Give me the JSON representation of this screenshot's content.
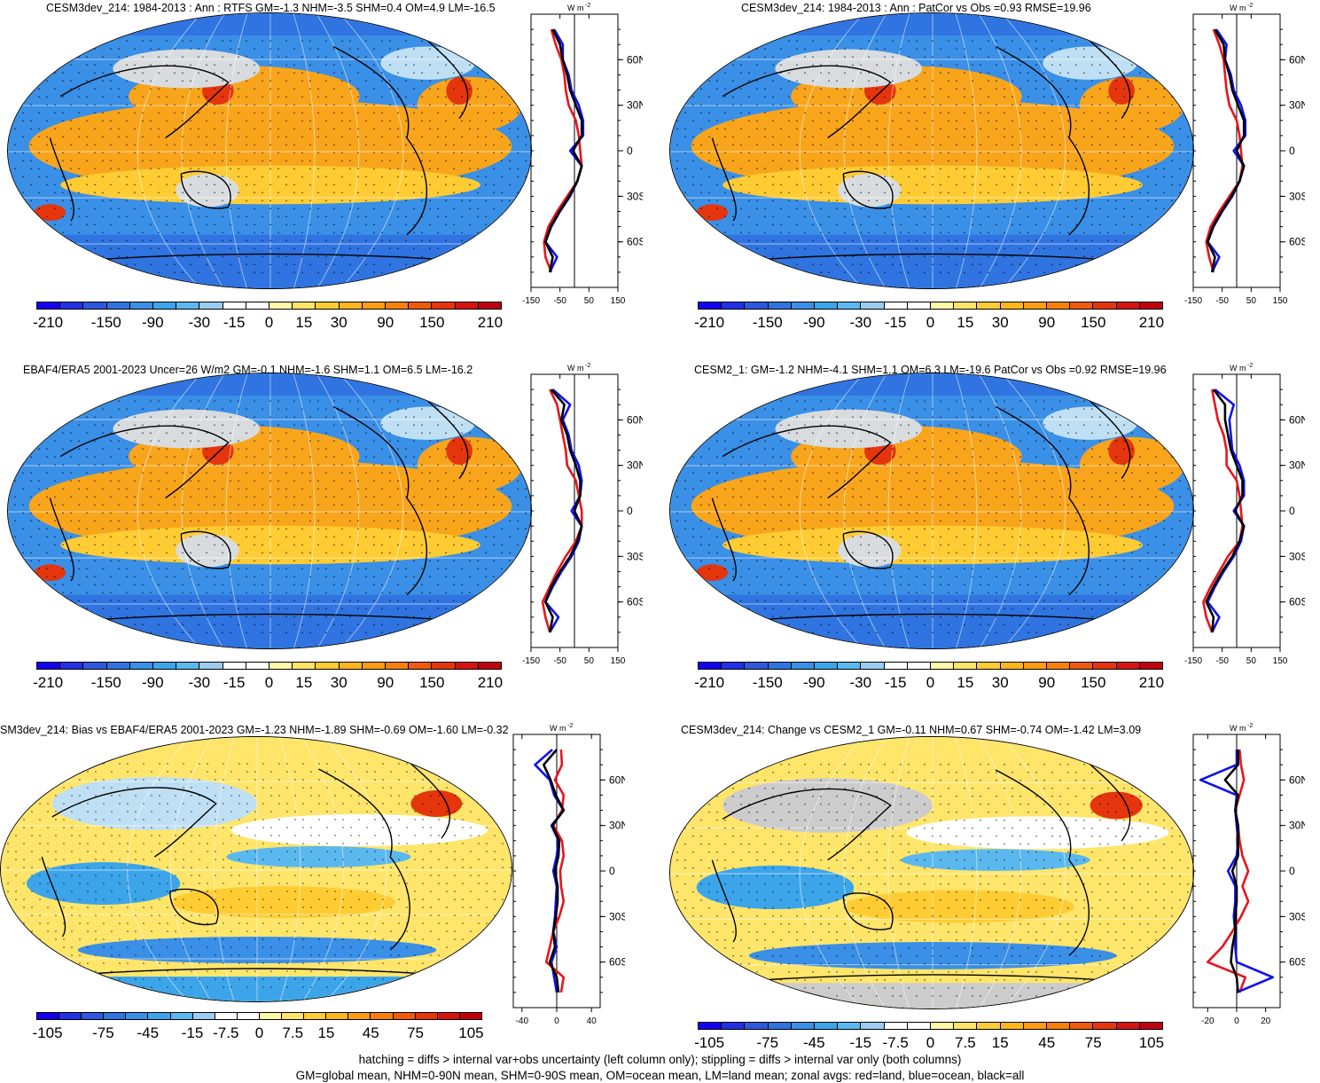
{
  "palettes": {
    "full": [
      "#1500f0",
      "#2230e6",
      "#2e58dd",
      "#2f74e0",
      "#3a8fe6",
      "#3ca5ea",
      "#5ab8ef",
      "#9acdf0",
      "#ffffff",
      "#ffffff",
      "#fff8a8",
      "#ffe56a",
      "#ffcc33",
      "#ffb61d",
      "#ff9c11",
      "#f7800b",
      "#ef5a0b",
      "#e5350d",
      "#d51310",
      "#c00010"
    ],
    "map_ocean": "#3a8fe6",
    "map_warm": "#f9a51c",
    "map_hot": "#e5350d",
    "map_land_grey": "#cccccc"
  },
  "footer": {
    "line1": "hatching = diffs > internal var+obs uncertainty (left column only); stippling = diffs > internal var only (both columns)",
    "line2": "GM=global mean, NHM=0-90N mean, SHM=0-90S mean, OM=ocean mean, LM=land mean; zonal avgs: red=land, blue=ocean, black=all"
  },
  "panels": [
    {
      "title": "CESM3dev_214: 1984-2013 : Ann : RTFS GM=-1.3 NHM=-3.5 SHM=0.4 OM=4.9 LM=-16.5",
      "cbar_labels": [
        "-210",
        "-150",
        "-90",
        "-30",
        "-15",
        "0",
        "15",
        "30",
        "90",
        "150",
        "210"
      ],
      "zonal_unit": "W m",
      "zonal_unit_sup": "-2",
      "zonal_xticks": [
        "-150",
        "-50",
        "50",
        "150"
      ],
      "zonal_yticks": [
        "60N",
        "30N",
        "0",
        "30S",
        "60S"
      ]
    },
    {
      "title": "CESM3dev_214: 1984-2013 : Ann : PatCor vs Obs =0.93 RMSE=19.96",
      "cbar_labels": [
        "-210",
        "-150",
        "-90",
        "-30",
        "-15",
        "0",
        "15",
        "30",
        "90",
        "150",
        "210"
      ],
      "zonal_unit": "W m",
      "zonal_unit_sup": "-2",
      "zonal_xticks": [
        "-150",
        "-50",
        "50",
        "150"
      ],
      "zonal_yticks": [
        "60N",
        "30N",
        "0",
        "30S",
        "60S"
      ]
    },
    {
      "title": "EBAF4/ERA5 2001-2023 Uncer=26 W/m2 GM=-0.1 NHM=-1.6 SHM=1.1 OM=6.5 LM=-16.2",
      "cbar_labels": [
        "-210",
        "-150",
        "-90",
        "-30",
        "-15",
        "0",
        "15",
        "30",
        "90",
        "150",
        "210"
      ],
      "zonal_unit": "W m",
      "zonal_unit_sup": "-2",
      "zonal_xticks": [
        "-150",
        "-50",
        "50",
        "150"
      ],
      "zonal_yticks": [
        "60N",
        "30N",
        "0",
        "30S",
        "60S"
      ]
    },
    {
      "title": "CESM2_1: GM=-1.2 NHM=-4.1 SHM=1.1 OM=6.3 LM=-19.6 PatCor vs Obs =0.92 RMSE=19.96",
      "cbar_labels": [
        "-210",
        "-150",
        "-90",
        "-30",
        "-15",
        "0",
        "15",
        "30",
        "90",
        "150",
        "210"
      ],
      "zonal_unit": "W m",
      "zonal_unit_sup": "-2",
      "zonal_xticks": [
        "-150",
        "-50",
        "50",
        "150"
      ],
      "zonal_yticks": [
        "60N",
        "30N",
        "0",
        "30S",
        "60S"
      ]
    },
    {
      "title": "SM3dev_214: Bias vs EBAF4/ERA5 2001-2023 GM=-1.23 NHM=-1.89 SHM=-0.69 OM=-1.60 LM=-0.32",
      "cbar_labels": [
        "-105",
        "-75",
        "-45",
        "-15",
        "-7.5",
        "0",
        "7.5",
        "15",
        "45",
        "75",
        "105"
      ],
      "zonal_unit": "W m",
      "zonal_unit_sup": "-2",
      "zonal_xticks": [
        "-40",
        "0",
        "40"
      ],
      "zonal_yticks": [
        "60N",
        "30N",
        "0",
        "30S",
        "60S"
      ]
    },
    {
      "title": "CESM3dev_214: Change vs CESM2_1 GM=-0.11 NHM=0.67 SHM=-0.74 OM=-1.42 LM=3.09",
      "cbar_labels": [
        "-105",
        "-75",
        "-45",
        "-15",
        "-7.5",
        "0",
        "7.5",
        "15",
        "45",
        "75",
        "105"
      ],
      "zonal_unit": "W m",
      "zonal_unit_sup": "-2",
      "zonal_xticks": [
        "-20",
        "0",
        "20"
      ],
      "zonal_yticks": [
        "60N",
        "30N",
        "0",
        "30S",
        "60S"
      ]
    }
  ],
  "chart_data": [
    {
      "type": "line",
      "panel": 0,
      "ylabel": "",
      "xlim": [
        -150,
        150
      ],
      "ylim": [
        -90,
        90
      ],
      "series": [
        {
          "name": "red",
          "color": "#e8141c",
          "lat": [
            -80,
            -70,
            -60,
            -50,
            -40,
            -30,
            -20,
            -10,
            0,
            10,
            20,
            30,
            40,
            50,
            60,
            70,
            80
          ],
          "values": [
            -80,
            -100,
            -105,
            -90,
            -60,
            -25,
            10,
            25,
            20,
            15,
            5,
            -20,
            -30,
            -35,
            -45,
            -65,
            -80
          ]
        },
        {
          "name": "blue",
          "color": "#1010f0",
          "lat": [
            -80,
            -70,
            -60,
            -50,
            -40,
            -30,
            -20,
            -10,
            0,
            10,
            20,
            30,
            40,
            50,
            60,
            70,
            80
          ],
          "values": [
            -85,
            -60,
            -100,
            -80,
            -50,
            -15,
            10,
            25,
            -15,
            30,
            30,
            15,
            -10,
            -20,
            -40,
            -40,
            -70
          ]
        },
        {
          "name": "black",
          "color": "#000000",
          "lat": [
            -80,
            -70,
            -60,
            -50,
            -40,
            -30,
            -20,
            -10,
            0,
            10,
            20,
            30,
            40,
            50,
            60,
            70,
            80
          ],
          "values": [
            -85,
            -75,
            -100,
            -82,
            -52,
            -18,
            10,
            25,
            -5,
            25,
            25,
            5,
            -15,
            -25,
            -40,
            -50,
            -75
          ]
        }
      ]
    },
    {
      "type": "line",
      "panel": 1,
      "ylabel": "",
      "xlim": [
        -150,
        150
      ],
      "ylim": [
        -90,
        90
      ],
      "series": [
        {
          "name": "red",
          "color": "#e8141c",
          "lat": [
            -80,
            -70,
            -60,
            -50,
            -40,
            -30,
            -20,
            -10,
            0,
            10,
            20,
            30,
            40,
            50,
            60,
            70,
            80
          ],
          "values": [
            -80,
            -95,
            -105,
            -90,
            -60,
            -25,
            10,
            20,
            15,
            10,
            0,
            -25,
            -35,
            -40,
            -45,
            -60,
            -80
          ]
        },
        {
          "name": "blue",
          "color": "#1010f0",
          "lat": [
            -80,
            -70,
            -60,
            -50,
            -40,
            -30,
            -20,
            -10,
            0,
            10,
            20,
            30,
            40,
            50,
            60,
            70,
            80
          ],
          "values": [
            -85,
            -60,
            -100,
            -80,
            -50,
            -15,
            10,
            25,
            -10,
            30,
            30,
            15,
            -10,
            -20,
            -40,
            -35,
            -70
          ]
        },
        {
          "name": "black",
          "color": "#000000",
          "lat": [
            -80,
            -70,
            -60,
            -50,
            -40,
            -30,
            -20,
            -10,
            0,
            10,
            20,
            30,
            40,
            50,
            60,
            70,
            80
          ],
          "values": [
            -85,
            -75,
            -100,
            -82,
            -52,
            -18,
            10,
            25,
            0,
            25,
            25,
            5,
            -15,
            -25,
            -40,
            -45,
            -75
          ]
        }
      ]
    },
    {
      "type": "line",
      "panel": 2,
      "ylabel": "",
      "xlim": [
        -150,
        150
      ],
      "ylim": [
        -90,
        90
      ],
      "series": [
        {
          "name": "red",
          "color": "#e8141c",
          "lat": [
            -80,
            -70,
            -60,
            -50,
            -40,
            -30,
            -20,
            -10,
            0,
            10,
            20,
            30,
            40,
            50,
            60,
            70,
            80
          ],
          "values": [
            -85,
            -100,
            -110,
            -85,
            -60,
            -30,
            5,
            25,
            25,
            15,
            5,
            -25,
            -30,
            -40,
            -50,
            -60,
            -85
          ]
        },
        {
          "name": "blue",
          "color": "#1010f0",
          "lat": [
            -80,
            -70,
            -60,
            -50,
            -40,
            -30,
            -20,
            -10,
            0,
            10,
            20,
            30,
            40,
            50,
            60,
            70,
            80
          ],
          "values": [
            -85,
            -55,
            -100,
            -75,
            -45,
            -10,
            15,
            25,
            -10,
            20,
            25,
            15,
            -10,
            -20,
            -40,
            -15,
            -75
          ]
        },
        {
          "name": "black",
          "color": "#000000",
          "lat": [
            -80,
            -70,
            -60,
            -50,
            -40,
            -30,
            -20,
            -10,
            0,
            10,
            20,
            30,
            40,
            50,
            60,
            70,
            80
          ],
          "values": [
            -85,
            -75,
            -100,
            -80,
            -50,
            -15,
            10,
            25,
            0,
            20,
            20,
            5,
            -15,
            -25,
            -45,
            -35,
            -80
          ]
        }
      ]
    },
    {
      "type": "line",
      "panel": 3,
      "ylabel": "",
      "xlim": [
        -150,
        150
      ],
      "ylim": [
        -90,
        90
      ],
      "series": [
        {
          "name": "red",
          "color": "#e8141c",
          "lat": [
            -80,
            -70,
            -60,
            -50,
            -40,
            -30,
            -20,
            -10,
            0,
            10,
            20,
            30,
            40,
            50,
            60,
            70,
            80
          ],
          "values": [
            -85,
            -105,
            -115,
            -90,
            -60,
            -30,
            10,
            20,
            15,
            10,
            0,
            -35,
            -35,
            -45,
            -65,
            -75,
            -85
          ]
        },
        {
          "name": "blue",
          "color": "#1010f0",
          "lat": [
            -80,
            -70,
            -60,
            -50,
            -40,
            -30,
            -20,
            -10,
            0,
            10,
            20,
            30,
            40,
            50,
            60,
            70,
            80
          ],
          "values": [
            -85,
            -60,
            -100,
            -75,
            -45,
            -10,
            15,
            25,
            -10,
            25,
            25,
            10,
            -15,
            -20,
            -25,
            -10,
            -75
          ]
        },
        {
          "name": "black",
          "color": "#000000",
          "lat": [
            -80,
            -70,
            -60,
            -50,
            -40,
            -30,
            -20,
            -10,
            0,
            10,
            20,
            30,
            40,
            50,
            60,
            70,
            80
          ],
          "values": [
            -85,
            -80,
            -105,
            -80,
            -50,
            -15,
            10,
            25,
            -5,
            20,
            20,
            0,
            -20,
            -30,
            -40,
            -40,
            -80
          ]
        }
      ]
    },
    {
      "type": "line",
      "panel": 4,
      "ylabel": "",
      "xlim": [
        -50,
        50
      ],
      "ylim": [
        -90,
        90
      ],
      "series": [
        {
          "name": "red",
          "color": "#e8141c",
          "lat": [
            -80,
            -70,
            -60,
            -50,
            -40,
            -30,
            -20,
            -10,
            0,
            10,
            20,
            30,
            40,
            50,
            60,
            70,
            80
          ],
          "values": [
            5,
            8,
            -12,
            -8,
            -4,
            3,
            8,
            5,
            4,
            8,
            6,
            -4,
            6,
            8,
            -2,
            6,
            5
          ]
        },
        {
          "name": "blue",
          "color": "#1010f0",
          "lat": [
            -80,
            -70,
            -60,
            -50,
            -40,
            -30,
            -20,
            -10,
            0,
            10,
            20,
            30,
            40,
            50,
            60,
            70,
            80
          ],
          "values": [
            0,
            -3,
            -6,
            0,
            -4,
            -2,
            -1,
            0,
            -4,
            0,
            2,
            -6,
            8,
            -3,
            -8,
            -25,
            -5
          ]
        },
        {
          "name": "black",
          "color": "#000000",
          "lat": [
            -80,
            -70,
            -60,
            -50,
            -40,
            -30,
            -20,
            -10,
            0,
            10,
            20,
            30,
            40,
            50,
            60,
            70,
            80
          ],
          "values": [
            2,
            0,
            -8,
            -2,
            -4,
            -1,
            1,
            1,
            -2,
            2,
            3,
            -5,
            8,
            -1,
            -7,
            -15,
            0
          ]
        }
      ]
    },
    {
      "type": "line",
      "panel": 5,
      "ylabel": "",
      "xlim": [
        -30,
        30
      ],
      "ylim": [
        -90,
        90
      ],
      "series": [
        {
          "name": "red",
          "color": "#e8141c",
          "lat": [
            -80,
            -70,
            -60,
            -50,
            -40,
            -30,
            -20,
            -10,
            0,
            10,
            20,
            30,
            40,
            50,
            60,
            70,
            80
          ],
          "values": [
            2,
            6,
            -20,
            -10,
            -3,
            3,
            8,
            4,
            8,
            4,
            2,
            1,
            -1,
            2,
            5,
            3,
            2
          ]
        },
        {
          "name": "blue",
          "color": "#1010f0",
          "lat": [
            -80,
            -70,
            -60,
            -50,
            -40,
            -30,
            -20,
            -10,
            0,
            10,
            20,
            30,
            40,
            50,
            60,
            70,
            80
          ],
          "values": [
            0,
            25,
            0,
            -1,
            -1,
            -2,
            -1,
            -1,
            -6,
            0,
            1,
            0,
            -1,
            0,
            -25,
            0,
            0
          ]
        },
        {
          "name": "black",
          "color": "#000000",
          "lat": [
            -80,
            -70,
            -60,
            -50,
            -40,
            -30,
            -20,
            -10,
            0,
            10,
            20,
            30,
            40,
            50,
            60,
            70,
            80
          ],
          "values": [
            1,
            0,
            -4,
            -3,
            -1,
            -1,
            0,
            0,
            -3,
            1,
            1,
            1,
            -1,
            1,
            -8,
            1,
            1
          ]
        }
      ]
    }
  ]
}
